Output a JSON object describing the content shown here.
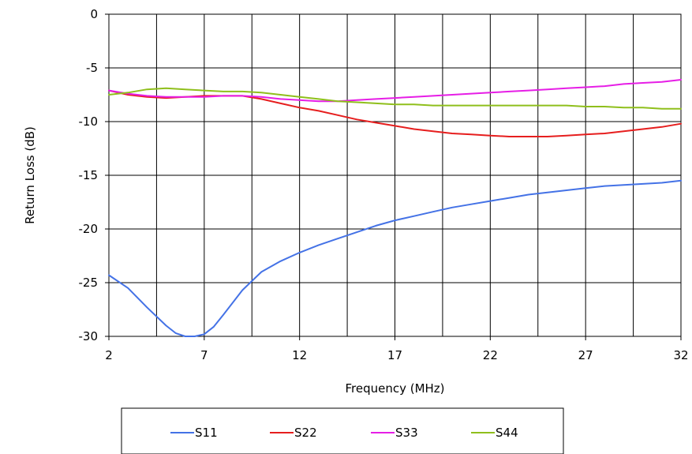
{
  "chart_data": {
    "type": "line",
    "title": "",
    "xlabel": "Frequency (MHz)",
    "ylabel": "Return Loss (dB)",
    "xlim": [
      2,
      32
    ],
    "ylim": [
      -30,
      0
    ],
    "xticks": [
      2,
      7,
      12,
      17,
      22,
      27,
      32
    ],
    "yticks": [
      0,
      -5,
      -10,
      -15,
      -20,
      -25,
      -30
    ],
    "grid": true,
    "legend_position": "bottom",
    "series": [
      {
        "name": "S11",
        "color": "#4472e6",
        "x": [
          2,
          3,
          4,
          5,
          5.5,
          6,
          6.5,
          7,
          7.5,
          8,
          9,
          10,
          11,
          12,
          13,
          14,
          15,
          16,
          17,
          18,
          19,
          20,
          21,
          22,
          23,
          24,
          25,
          26,
          27,
          28,
          29,
          30,
          31,
          32
        ],
        "y": [
          -24.3,
          -25.5,
          -27.3,
          -29.0,
          -29.7,
          -30.0,
          -30.0,
          -29.8,
          -29.1,
          -28.0,
          -25.7,
          -24.0,
          -23.0,
          -22.2,
          -21.5,
          -20.9,
          -20.3,
          -19.7,
          -19.2,
          -18.8,
          -18.4,
          -18.0,
          -17.7,
          -17.4,
          -17.1,
          -16.8,
          -16.6,
          -16.4,
          -16.2,
          -16.0,
          -15.9,
          -15.8,
          -15.7,
          -15.5
        ]
      },
      {
        "name": "S22",
        "color": "#e61e1e",
        "x": [
          2,
          3,
          4,
          5,
          6,
          7,
          8,
          9,
          10,
          11,
          12,
          13,
          14,
          15,
          16,
          17,
          18,
          19,
          20,
          21,
          22,
          23,
          24,
          25,
          26,
          27,
          28,
          29,
          30,
          31,
          32
        ],
        "y": [
          -7.1,
          -7.5,
          -7.7,
          -7.8,
          -7.7,
          -7.6,
          -7.6,
          -7.6,
          -7.9,
          -8.3,
          -8.7,
          -9.0,
          -9.4,
          -9.8,
          -10.1,
          -10.4,
          -10.7,
          -10.9,
          -11.1,
          -11.2,
          -11.3,
          -11.4,
          -11.4,
          -11.4,
          -11.3,
          -11.2,
          -11.1,
          -10.9,
          -10.7,
          -10.5,
          -10.2
        ]
      },
      {
        "name": "S33",
        "color": "#e61ee6",
        "x": [
          2,
          3,
          4,
          5,
          6,
          7,
          8,
          9,
          10,
          11,
          12,
          13,
          14,
          15,
          16,
          17,
          18,
          19,
          20,
          21,
          22,
          23,
          24,
          25,
          26,
          27,
          28,
          29,
          30,
          31,
          32
        ],
        "y": [
          -7.1,
          -7.4,
          -7.6,
          -7.7,
          -7.7,
          -7.7,
          -7.6,
          -7.6,
          -7.7,
          -7.9,
          -8.0,
          -8.1,
          -8.1,
          -8.0,
          -7.9,
          -7.8,
          -7.7,
          -7.6,
          -7.5,
          -7.4,
          -7.3,
          -7.2,
          -7.1,
          -7.0,
          -6.9,
          -6.8,
          -6.7,
          -6.5,
          -6.4,
          -6.3,
          -6.1
        ]
      },
      {
        "name": "S44",
        "color": "#8fbf1c",
        "x": [
          2,
          3,
          4,
          5,
          6,
          7,
          8,
          9,
          10,
          11,
          12,
          13,
          14,
          15,
          16,
          17,
          18,
          19,
          20,
          21,
          22,
          23,
          24,
          25,
          26,
          27,
          28,
          29,
          30,
          31,
          32
        ],
        "y": [
          -7.5,
          -7.3,
          -7.0,
          -6.9,
          -7.0,
          -7.1,
          -7.2,
          -7.2,
          -7.3,
          -7.5,
          -7.7,
          -7.9,
          -8.1,
          -8.2,
          -8.3,
          -8.4,
          -8.4,
          -8.5,
          -8.5,
          -8.5,
          -8.5,
          -8.5,
          -8.5,
          -8.5,
          -8.5,
          -8.6,
          -8.6,
          -8.7,
          -8.7,
          -8.8,
          -8.8
        ]
      }
    ]
  }
}
